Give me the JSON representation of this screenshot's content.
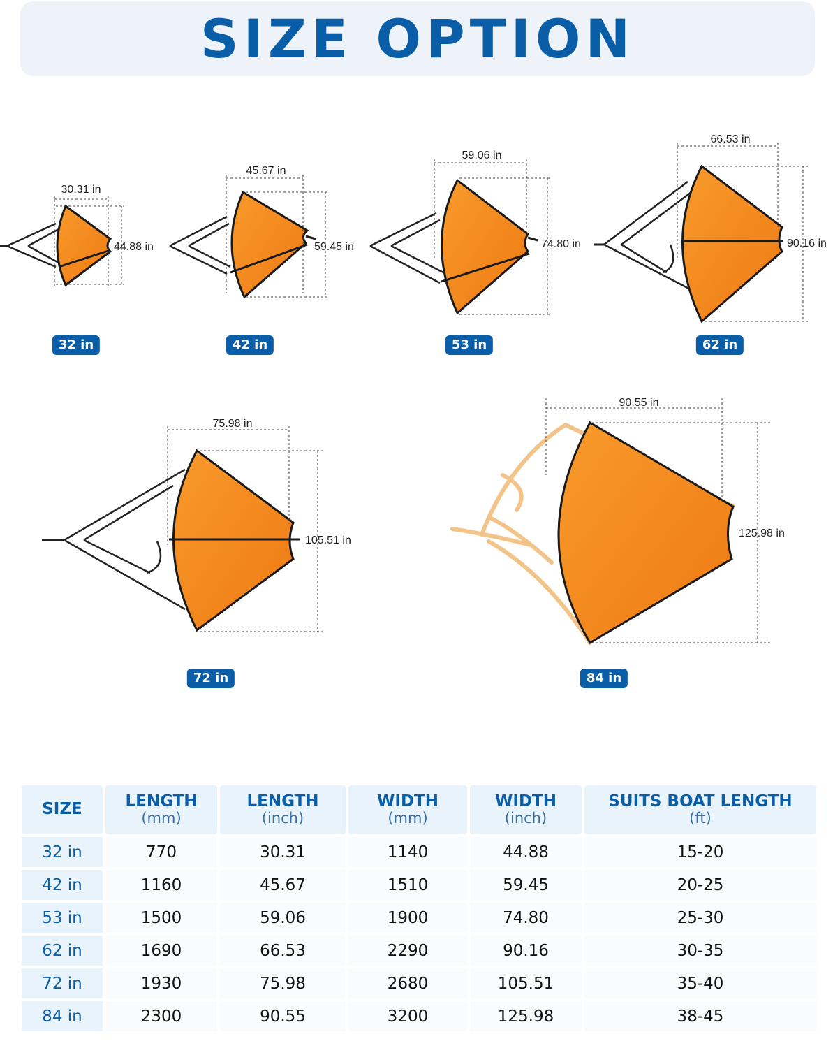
{
  "banner": {
    "title": "SIZE OPTION"
  },
  "colors": {
    "accent": "#0a5ea8",
    "chute": "#f58a1f",
    "strap_light": "#f3c489"
  },
  "illustrations": [
    {
      "badge": "32 in",
      "length_label": "30.31 in",
      "width_label": "44.88 in"
    },
    {
      "badge": "42 in",
      "length_label": "45.67 in",
      "width_label": "59.45 in"
    },
    {
      "badge": "53 in",
      "length_label": "59.06 in",
      "width_label": "74.80 in"
    },
    {
      "badge": "62 in",
      "length_label": "66.53 in",
      "width_label": "90.16 in"
    },
    {
      "badge": "72 in",
      "length_label": "75.98 in",
      "width_label": "105.51 in"
    },
    {
      "badge": "84 in",
      "length_label": "90.55 in",
      "width_label": "125.98 in"
    }
  ],
  "table": {
    "headers": [
      {
        "title": "SIZE",
        "unit": ""
      },
      {
        "title": "LENGTH",
        "unit": "(mm)"
      },
      {
        "title": "LENGTH",
        "unit": "(inch)"
      },
      {
        "title": "WIDTH",
        "unit": "(mm)"
      },
      {
        "title": "WIDTH",
        "unit": "(inch)"
      },
      {
        "title": "SUITS BOAT LENGTH",
        "unit": "(ft)"
      }
    ],
    "rows": [
      [
        "32 in",
        "770",
        "30.31",
        "1140",
        "44.88",
        "15-20"
      ],
      [
        "42 in",
        "1160",
        "45.67",
        "1510",
        "59.45",
        "20-25"
      ],
      [
        "53 in",
        "1500",
        "59.06",
        "1900",
        "74.80",
        "25-30"
      ],
      [
        "62 in",
        "1690",
        "66.53",
        "2290",
        "90.16",
        "30-35"
      ],
      [
        "72 in",
        "1930",
        "75.98",
        "2680",
        "105.51",
        "35-40"
      ],
      [
        "84 in",
        "2300",
        "90.55",
        "3200",
        "125.98",
        "38-45"
      ]
    ]
  }
}
